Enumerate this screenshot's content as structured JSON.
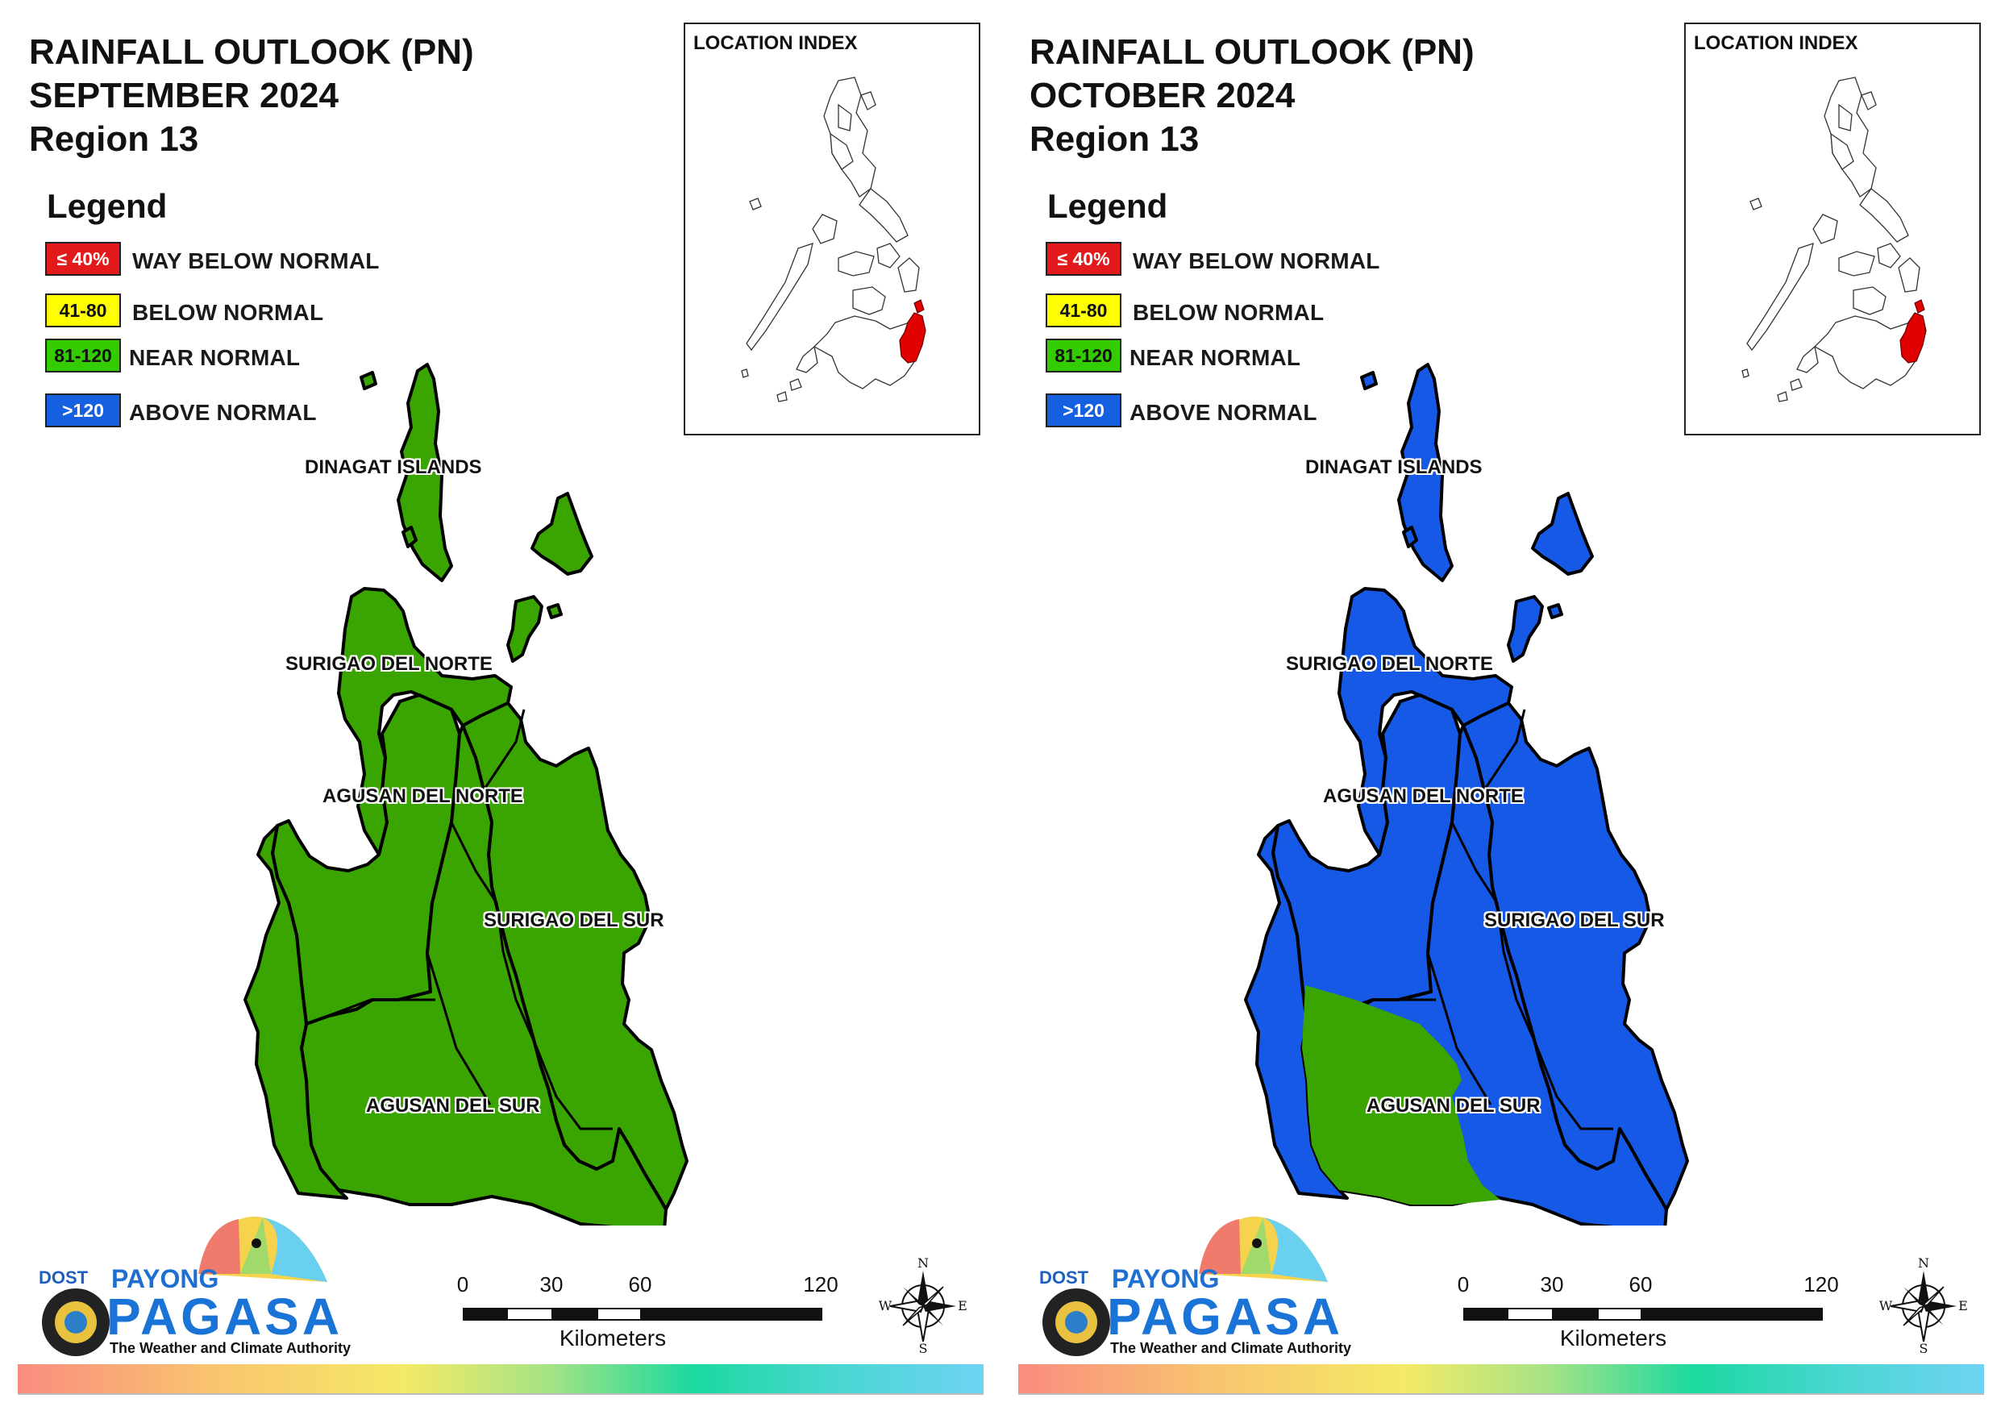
{
  "panels": [
    {
      "title_line1": "RAINFALL OUTLOOK (PN)",
      "title_line2": "SEPTEMBER 2024",
      "title_line3": "Region 13",
      "regions": {
        "dinagat": "near-normal",
        "surigao_norte": "near-normal",
        "agusan_norte": "near-normal",
        "surigao_sur": "near-normal",
        "agusan_sur": "near-normal"
      }
    },
    {
      "title_line1": "RAINFALL OUTLOOK (PN)",
      "title_line2": "OCTOBER 2024",
      "title_line3": "Region 13",
      "regions": {
        "dinagat": "above-normal",
        "surigao_norte": "above-normal",
        "agusan_norte": "above-normal",
        "surigao_sur": "above-normal",
        "agusan_sur": "above-normal, near-normal in the west"
      }
    }
  ],
  "legend": {
    "title": "Legend",
    "items": [
      {
        "range": "≤ 40%",
        "label": "WAY BELOW NORMAL",
        "color": "#e31a1c",
        "text_color": "#ffffff"
      },
      {
        "range": "41-80",
        "label": "BELOW NORMAL",
        "color": "#ffff00",
        "text_color": "#111111"
      },
      {
        "range": "81-120",
        "label": "NEAR NORMAL",
        "color": "#33cc00",
        "text_color": "#111111"
      },
      {
        "range": ">120",
        "label": "ABOVE NORMAL",
        "color": "#1560e0",
        "text_color": "#ffffff"
      }
    ]
  },
  "map_colors": {
    "near_normal": "#3aa500",
    "above_normal": "#1559e6",
    "index_highlight": "#e00000"
  },
  "index_title": "LOCATION INDEX",
  "labels": {
    "dinagat": "DINAGAT ISLANDS",
    "surigao_norte": "SURIGAO DEL NORTE",
    "agusan_norte": "AGUSAN DEL NORTE",
    "surigao_sur": "SURIGAO DEL SUR",
    "agusan_sur": "AGUSAN DEL SUR"
  },
  "scale": {
    "ticks": [
      "0",
      "30",
      "60",
      "120"
    ],
    "unit": "Kilometers"
  },
  "compass": {
    "n": "N",
    "s": "S",
    "e": "E",
    "w": "W"
  },
  "logo": {
    "dost": "DOST",
    "payong": "PAYONG",
    "pagasa": "PAGASA",
    "tagline": "The Weather and Climate Authority"
  }
}
